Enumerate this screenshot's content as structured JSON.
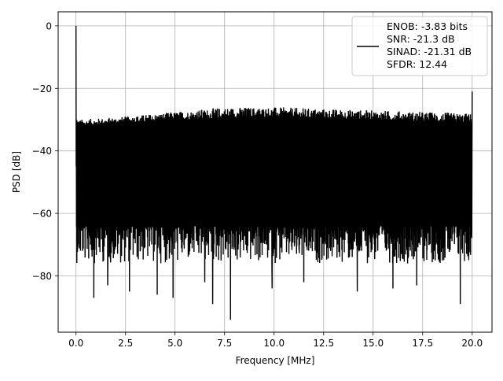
{
  "chart_data": {
    "type": "line",
    "xlabel": "Frequency [MHz]",
    "ylabel": "PSD [dB]",
    "xlim": [
      -0.9,
      21.0
    ],
    "ylim": [
      -98,
      4.5
    ],
    "xticks": [
      0.0,
      2.5,
      5.0,
      7.5,
      10.0,
      12.5,
      15.0,
      17.5,
      20.0
    ],
    "xtick_labels": [
      "0.0",
      "2.5",
      "5.0",
      "7.5",
      "10.0",
      "12.5",
      "15.0",
      "17.5",
      "20.0"
    ],
    "yticks": [
      0,
      -20,
      -40,
      -60,
      -80
    ],
    "ytick_labels": [
      "0",
      "−20",
      "−40",
      "−60",
      "−80"
    ],
    "grid": true,
    "legend_position": "top-right",
    "series": [
      {
        "name": "ENOB: -3.83 bits\nSNR: -21.3 dB\nSINAD: -21.31 dB\nSFDR: 12.44",
        "color": "#000000",
        "x_range": [
          0.0,
          20.0
        ],
        "dc_peak": 0.0,
        "nyquist_peak": -21.0,
        "upper_envelope": [
          [
            0.0,
            -25
          ],
          [
            0.1,
            -30
          ],
          [
            2.5,
            -29
          ],
          [
            5.0,
            -27.5
          ],
          [
            7.5,
            -26
          ],
          [
            10.0,
            -26
          ],
          [
            12.5,
            -26.5
          ],
          [
            15.0,
            -27
          ],
          [
            17.5,
            -27.5
          ],
          [
            20.0,
            -28
          ]
        ],
        "noise_floor_band_top": [
          [
            0.0,
            -32
          ],
          [
            5.0,
            -30
          ],
          [
            10.0,
            -29
          ],
          [
            15.0,
            -30
          ],
          [
            20.0,
            -31
          ]
        ],
        "noise_floor_band_bottom": [
          [
            0.0,
            -64
          ],
          [
            5.0,
            -64
          ],
          [
            10.0,
            -64
          ],
          [
            15.0,
            -64
          ],
          [
            20.0,
            -64
          ]
        ],
        "deep_nulls": [
          [
            0.9,
            -87
          ],
          [
            1.6,
            -83
          ],
          [
            2.7,
            -85
          ],
          [
            4.1,
            -86
          ],
          [
            4.9,
            -87
          ],
          [
            6.5,
            -82
          ],
          [
            6.9,
            -89
          ],
          [
            7.8,
            -94
          ],
          [
            9.9,
            -84
          ],
          [
            11.5,
            -82
          ],
          [
            14.2,
            -85
          ],
          [
            16.0,
            -84
          ],
          [
            17.2,
            -83
          ],
          [
            19.4,
            -89
          ]
        ]
      }
    ],
    "legend_lines": [
      "ENOB: -3.83 bits",
      "SNR: -21.3 dB",
      "SINAD: -21.31 dB",
      "SFDR: 12.44"
    ]
  }
}
